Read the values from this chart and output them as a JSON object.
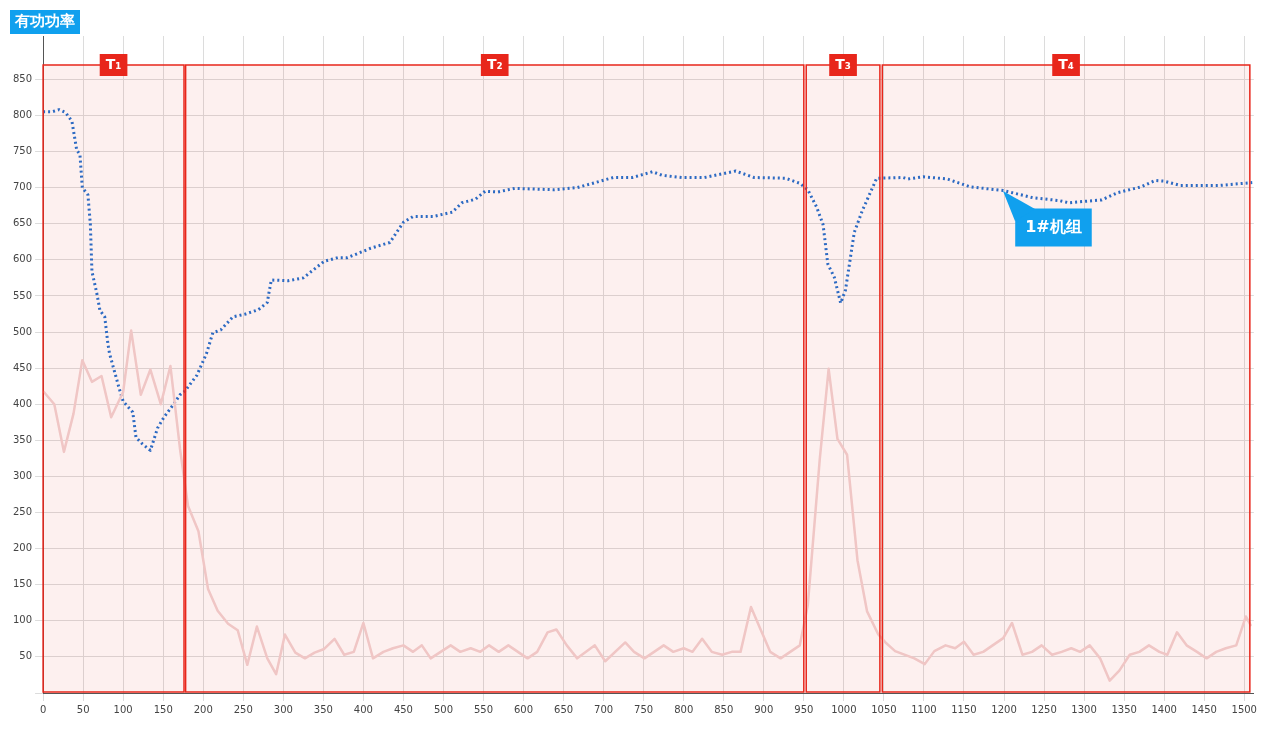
{
  "chart_data": {
    "type": "line",
    "title": "有功功率",
    "xlim": [
      0,
      1512
    ],
    "xticks": [
      0,
      50,
      100,
      150,
      200,
      250,
      300,
      350,
      400,
      450,
      500,
      550,
      600,
      650,
      700,
      750,
      800,
      850,
      900,
      950,
      1000,
      1050,
      1100,
      1150,
      1200,
      1250,
      1300,
      1350,
      1400,
      1450,
      1500
    ],
    "ylim": [
      0,
      910
    ],
    "yticks": [
      {
        "value": 0,
        "label": null
      },
      50,
      100,
      150,
      200,
      250,
      300,
      350,
      400,
      450,
      500,
      550,
      600,
      650,
      700,
      750,
      800,
      850
    ],
    "grid": true,
    "legend": false,
    "marker": "none",
    "series": [
      {
        "color": "#f2d2d2",
        "line_style": "solid",
        "x": [
          1,
          14,
          26,
          38,
          49,
          61,
          73,
          85,
          100,
          110,
          122,
          134,
          147,
          159,
          171,
          181,
          194,
          206,
          218,
          231,
          243,
          255,
          267,
          280,
          291,
          302,
          315,
          327,
          339,
          351,
          364,
          376,
          388,
          400,
          412,
          425,
          437,
          450,
          462,
          473,
          484,
          509,
          521,
          534,
          546,
          557,
          569,
          581,
          605,
          617,
          630,
          641,
          654,
          667,
          689,
          702,
          727,
          738,
          751,
          775,
          787,
          800,
          811,
          823,
          835,
          848,
          860,
          871,
          884,
          896,
          908,
          921,
          933,
          945,
          955,
          970,
          981,
          992,
          1004,
          1017,
          1029,
          1043,
          1052,
          1064,
          1088,
          1101,
          1113,
          1127,
          1139,
          1150,
          1162,
          1174,
          1199,
          1210,
          1223,
          1235,
          1247,
          1260,
          1272,
          1284,
          1295,
          1307,
          1320,
          1332,
          1344,
          1357,
          1369,
          1381,
          1394,
          1404,
          1416,
          1428,
          1441,
          1453,
          1465,
          1477,
          1490,
          1502,
          1508
        ],
        "values": [
          417,
          400,
          334,
          387,
          461,
          431,
          439,
          382,
          417,
          502,
          413,
          448,
          400,
          453,
          338,
          259,
          224,
          144,
          114,
          96,
          87,
          39,
          92,
          48,
          26,
          81,
          56,
          48,
          56,
          61,
          75,
          53,
          57,
          97,
          48,
          57,
          62,
          66,
          57,
          66,
          48,
          66,
          57,
          62,
          57,
          66,
          57,
          66,
          48,
          57,
          84,
          88,
          66,
          48,
          66,
          44,
          70,
          57,
          48,
          66,
          57,
          62,
          57,
          75,
          57,
          53,
          57,
          57,
          119,
          88,
          57,
          48,
          57,
          66,
          122,
          325,
          449,
          352,
          330,
          184,
          113,
          81,
          70,
          58,
          48,
          40,
          58,
          66,
          62,
          71,
          53,
          57,
          76,
          97,
          53,
          57,
          66,
          53,
          57,
          62,
          57,
          66,
          48,
          17,
          31,
          53,
          57,
          66,
          57,
          53,
          84,
          66,
          57,
          48,
          57,
          62,
          66,
          106,
          94
        ]
      },
      {
        "name": "1#机组",
        "color": "#1f6fd0",
        "line_style": "dotted",
        "x": [
          0,
          11,
          20,
          28,
          36,
          42,
          46,
          49,
          56,
          59,
          61,
          67,
          71,
          77,
          81,
          83,
          95,
          100,
          112,
          116,
          124,
          134,
          143,
          151,
          163,
          171,
          177,
          192,
          204,
          212,
          222,
          237,
          253,
          269,
          280,
          282,
          285,
          306,
          325,
          351,
          368,
          380,
          409,
          433,
          450,
          462,
          487,
          511,
          523,
          540,
          552,
          568,
          589,
          638,
          667,
          712,
          736,
          761,
          773,
          798,
          826,
          865,
          888,
          927,
          945,
          955,
          966,
          974,
          980,
          988,
          996,
          1002,
          1013,
          1023,
          1041,
          1074,
          1080,
          1099,
          1129,
          1158,
          1199,
          1236,
          1269,
          1281,
          1322,
          1342,
          1371,
          1389,
          1400,
          1420,
          1469,
          1510
        ],
        "values": [
          805,
          805,
          808,
          804,
          792,
          752,
          746,
          700,
          690,
          650,
          584,
          554,
          530,
          521,
          483,
          470,
          422,
          404,
          389,
          354,
          345,
          336,
          367,
          382,
          400,
          413,
          418,
          440,
          470,
          499,
          503,
          521,
          525,
          531,
          541,
          554,
          572,
          571,
          575,
          598,
          603,
          603,
          616,
          624,
          652,
          660,
          660,
          666,
          679,
          684,
          695,
          694,
          699,
          697,
          700,
          714,
          714,
          722,
          717,
          714,
          714,
          723,
          714,
          713,
          706,
          697,
          673,
          649,
          594,
          576,
          540,
          558,
          638,
          668,
          713,
          714,
          712,
          715,
          712,
          701,
          696,
          686,
          682,
          679,
          683,
          693,
          701,
          710,
          709,
          703,
          703,
          707
        ]
      }
    ],
    "bands": [
      {
        "axis": "x",
        "from": 0,
        "to": 176,
        "label": "T₁",
        "color": "#e8261b"
      },
      {
        "axis": "x",
        "from": 178,
        "to": 950,
        "label": "T₂",
        "color": "#e8261b"
      },
      {
        "axis": "x",
        "from": 953,
        "to": 1045,
        "label": "T₃",
        "color": "#e8261b"
      },
      {
        "axis": "x",
        "from": 1048,
        "to": 1507,
        "label": "T₄",
        "color": "#e8261b"
      }
    ]
  }
}
